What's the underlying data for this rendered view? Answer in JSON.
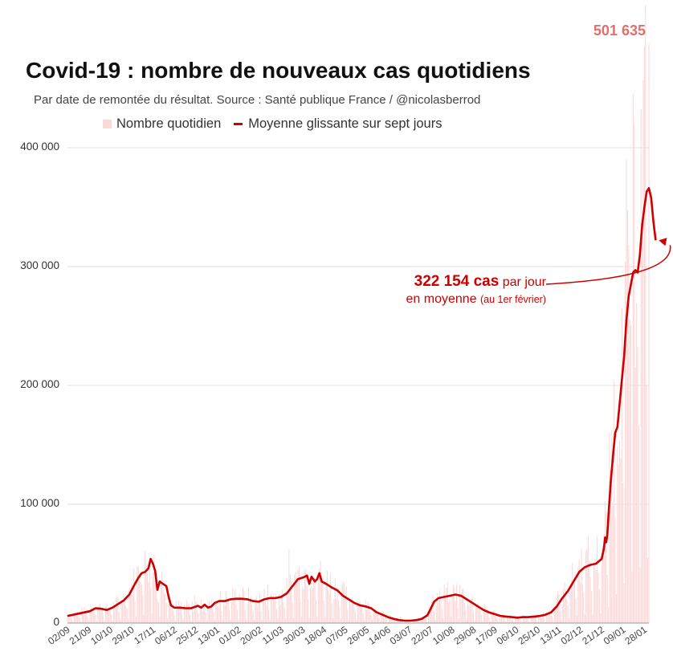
{
  "header": {
    "title": "Covid-19 : nombre de nouveaux cas quotidiens",
    "subtitle": "Par date de remontée du résultat. Source : Santé publique France / @nicolasberrod"
  },
  "legend": {
    "bars": "Nombre quotidien",
    "line": "Moyenne glissante sur sept jours"
  },
  "annotation": {
    "value": "322 154 cas",
    "text1": " par jour",
    "text2": "en moyenne",
    "note": "(au 1er février)",
    "peak": "501 635"
  },
  "colors": {
    "bars": "#fbd9d9",
    "line": "#cc0000",
    "grid": "#e0e0e0",
    "peak": "#e07070"
  },
  "chart_data": {
    "type": "bar",
    "title": "Covid-19 : nombre de nouveaux cas quotidiens",
    "ylim": [
      0,
      400000
    ],
    "yticks": [
      0,
      100000,
      200000,
      300000,
      400000
    ],
    "ytick_labels": [
      "0",
      "100 000",
      "200 000",
      "300 000",
      "400 000"
    ],
    "x_start": "2020-09-02",
    "x_end": "2022-02-01",
    "xtick_labels": [
      "02/09",
      "21/09",
      "10/10",
      "29/10",
      "17/11",
      "06/12",
      "25/12",
      "13/01",
      "01/02",
      "20/02",
      "11/03",
      "30/03",
      "18/04",
      "07/05",
      "26/05",
      "14/06",
      "03/07",
      "22/07",
      "10/08",
      "29/08",
      "17/09",
      "06/10",
      "25/10",
      "13/11",
      "02/12",
      "21/12",
      "09/01",
      "28/01"
    ],
    "series": [
      {
        "name": "Moyenne glissante sur sept jours",
        "type": "line",
        "points": [
          [
            0,
            6000
          ],
          [
            10,
            8000
          ],
          [
            20,
            10000
          ],
          [
            25,
            12500
          ],
          [
            30,
            12000
          ],
          [
            35,
            11000
          ],
          [
            40,
            13000
          ],
          [
            45,
            16000
          ],
          [
            50,
            19000
          ],
          [
            55,
            24000
          ],
          [
            60,
            33000
          ],
          [
            63,
            38000
          ],
          [
            66,
            42000
          ],
          [
            69,
            43000
          ],
          [
            72,
            46000
          ],
          [
            74,
            54000
          ],
          [
            76,
            50000
          ],
          [
            78,
            44000
          ],
          [
            79,
            36000
          ],
          [
            80,
            28000
          ],
          [
            82,
            35000
          ],
          [
            85,
            33000
          ],
          [
            88,
            31000
          ],
          [
            90,
            22000
          ],
          [
            92,
            15000
          ],
          [
            95,
            13000
          ],
          [
            100,
            13000
          ],
          [
            105,
            12500
          ],
          [
            110,
            12500
          ],
          [
            113,
            13500
          ],
          [
            116,
            14500
          ],
          [
            119,
            13000
          ],
          [
            122,
            15500
          ],
          [
            125,
            13000
          ],
          [
            128,
            14000
          ],
          [
            131,
            17000
          ],
          [
            135,
            18500
          ],
          [
            140,
            18500
          ],
          [
            145,
            20000
          ],
          [
            150,
            20500
          ],
          [
            155,
            20500
          ],
          [
            160,
            20000
          ],
          [
            165,
            18500
          ],
          [
            170,
            18000
          ],
          [
            175,
            20000
          ],
          [
            180,
            21000
          ],
          [
            185,
            21000
          ],
          [
            190,
            22000
          ],
          [
            195,
            25000
          ],
          [
            200,
            31000
          ],
          [
            205,
            37000
          ],
          [
            210,
            38500
          ],
          [
            213,
            40000
          ],
          [
            215,
            33000
          ],
          [
            217,
            39000
          ],
          [
            220,
            35000
          ],
          [
            222,
            37000
          ],
          [
            224,
            42000
          ],
          [
            226,
            35000
          ],
          [
            230,
            33000
          ],
          [
            235,
            30000
          ],
          [
            240,
            27500
          ],
          [
            245,
            23000
          ],
          [
            250,
            20000
          ],
          [
            255,
            17000
          ],
          [
            260,
            15000
          ],
          [
            265,
            14000
          ],
          [
            270,
            12500
          ],
          [
            275,
            9000
          ],
          [
            280,
            7000
          ],
          [
            285,
            5000
          ],
          [
            290,
            3500
          ],
          [
            295,
            2500
          ],
          [
            300,
            2000
          ],
          [
            305,
            2000
          ],
          [
            310,
            2500
          ],
          [
            315,
            3500
          ],
          [
            320,
            6500
          ],
          [
            323,
            12000
          ],
          [
            326,
            18000
          ],
          [
            330,
            21000
          ],
          [
            335,
            22000
          ],
          [
            340,
            23000
          ],
          [
            345,
            24000
          ],
          [
            350,
            23000
          ],
          [
            355,
            20000
          ],
          [
            360,
            17000
          ],
          [
            365,
            14000
          ],
          [
            370,
            11000
          ],
          [
            375,
            9000
          ],
          [
            380,
            7500
          ],
          [
            385,
            6000
          ],
          [
            390,
            5500
          ],
          [
            395,
            5000
          ],
          [
            400,
            4500
          ],
          [
            405,
            5000
          ],
          [
            410,
            5000
          ],
          [
            415,
            5500
          ],
          [
            420,
            6000
          ],
          [
            425,
            7000
          ],
          [
            430,
            9000
          ],
          [
            435,
            14000
          ],
          [
            440,
            21000
          ],
          [
            445,
            27000
          ],
          [
            450,
            35000
          ],
          [
            455,
            43000
          ],
          [
            460,
            47000
          ],
          [
            465,
            49000
          ],
          [
            470,
            50000
          ],
          [
            475,
            54000
          ],
          [
            477,
            63000
          ],
          [
            478,
            72000
          ],
          [
            479,
            68000
          ],
          [
            480,
            74000
          ],
          [
            481,
            90000
          ],
          [
            483,
            118000
          ],
          [
            485,
            140000
          ],
          [
            487,
            160000
          ],
          [
            489,
            165000
          ],
          [
            491,
            185000
          ],
          [
            493,
            205000
          ],
          [
            495,
            225000
          ],
          [
            497,
            255000
          ],
          [
            499,
            275000
          ],
          [
            501,
            285000
          ],
          [
            503,
            295000
          ],
          [
            505,
            297000
          ],
          [
            507,
            295000
          ],
          [
            509,
            310000
          ],
          [
            511,
            335000
          ],
          [
            513,
            350000
          ],
          [
            515,
            363000
          ],
          [
            517,
            366000
          ],
          [
            519,
            358000
          ],
          [
            521,
            338000
          ],
          [
            523,
            322154
          ]
        ]
      }
    ],
    "peak_value": 501635,
    "annotation_value": 322154
  }
}
